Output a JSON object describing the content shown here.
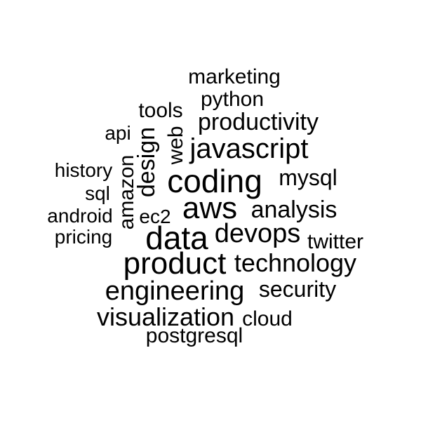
{
  "word_cloud": {
    "text_color": "#000000",
    "background_color": "#ffffff",
    "words": [
      {
        "id": "marketing",
        "text": "marketing"
      },
      {
        "id": "python",
        "text": "python"
      },
      {
        "id": "tools",
        "text": "tools"
      },
      {
        "id": "productivity",
        "text": "productivity"
      },
      {
        "id": "api",
        "text": "api"
      },
      {
        "id": "design",
        "text": "design"
      },
      {
        "id": "web",
        "text": "web"
      },
      {
        "id": "javascript",
        "text": "javascript"
      },
      {
        "id": "amazon",
        "text": "amazon"
      },
      {
        "id": "history",
        "text": "history"
      },
      {
        "id": "coding",
        "text": "coding"
      },
      {
        "id": "mysql",
        "text": "mysql"
      },
      {
        "id": "sql",
        "text": "sql"
      },
      {
        "id": "aws",
        "text": "aws"
      },
      {
        "id": "analysis",
        "text": "analysis"
      },
      {
        "id": "android",
        "text": "android"
      },
      {
        "id": "ec2",
        "text": "ec2"
      },
      {
        "id": "pricing",
        "text": "pricing"
      },
      {
        "id": "data",
        "text": "data"
      },
      {
        "id": "devops",
        "text": "devops"
      },
      {
        "id": "twitter",
        "text": "twitter"
      },
      {
        "id": "product",
        "text": "product"
      },
      {
        "id": "technology",
        "text": "technology"
      },
      {
        "id": "engineering",
        "text": "engineering"
      },
      {
        "id": "security",
        "text": "security"
      },
      {
        "id": "visualization",
        "text": "visualization"
      },
      {
        "id": "cloud",
        "text": "cloud"
      },
      {
        "id": "postgresql",
        "text": "postgresql"
      }
    ]
  }
}
